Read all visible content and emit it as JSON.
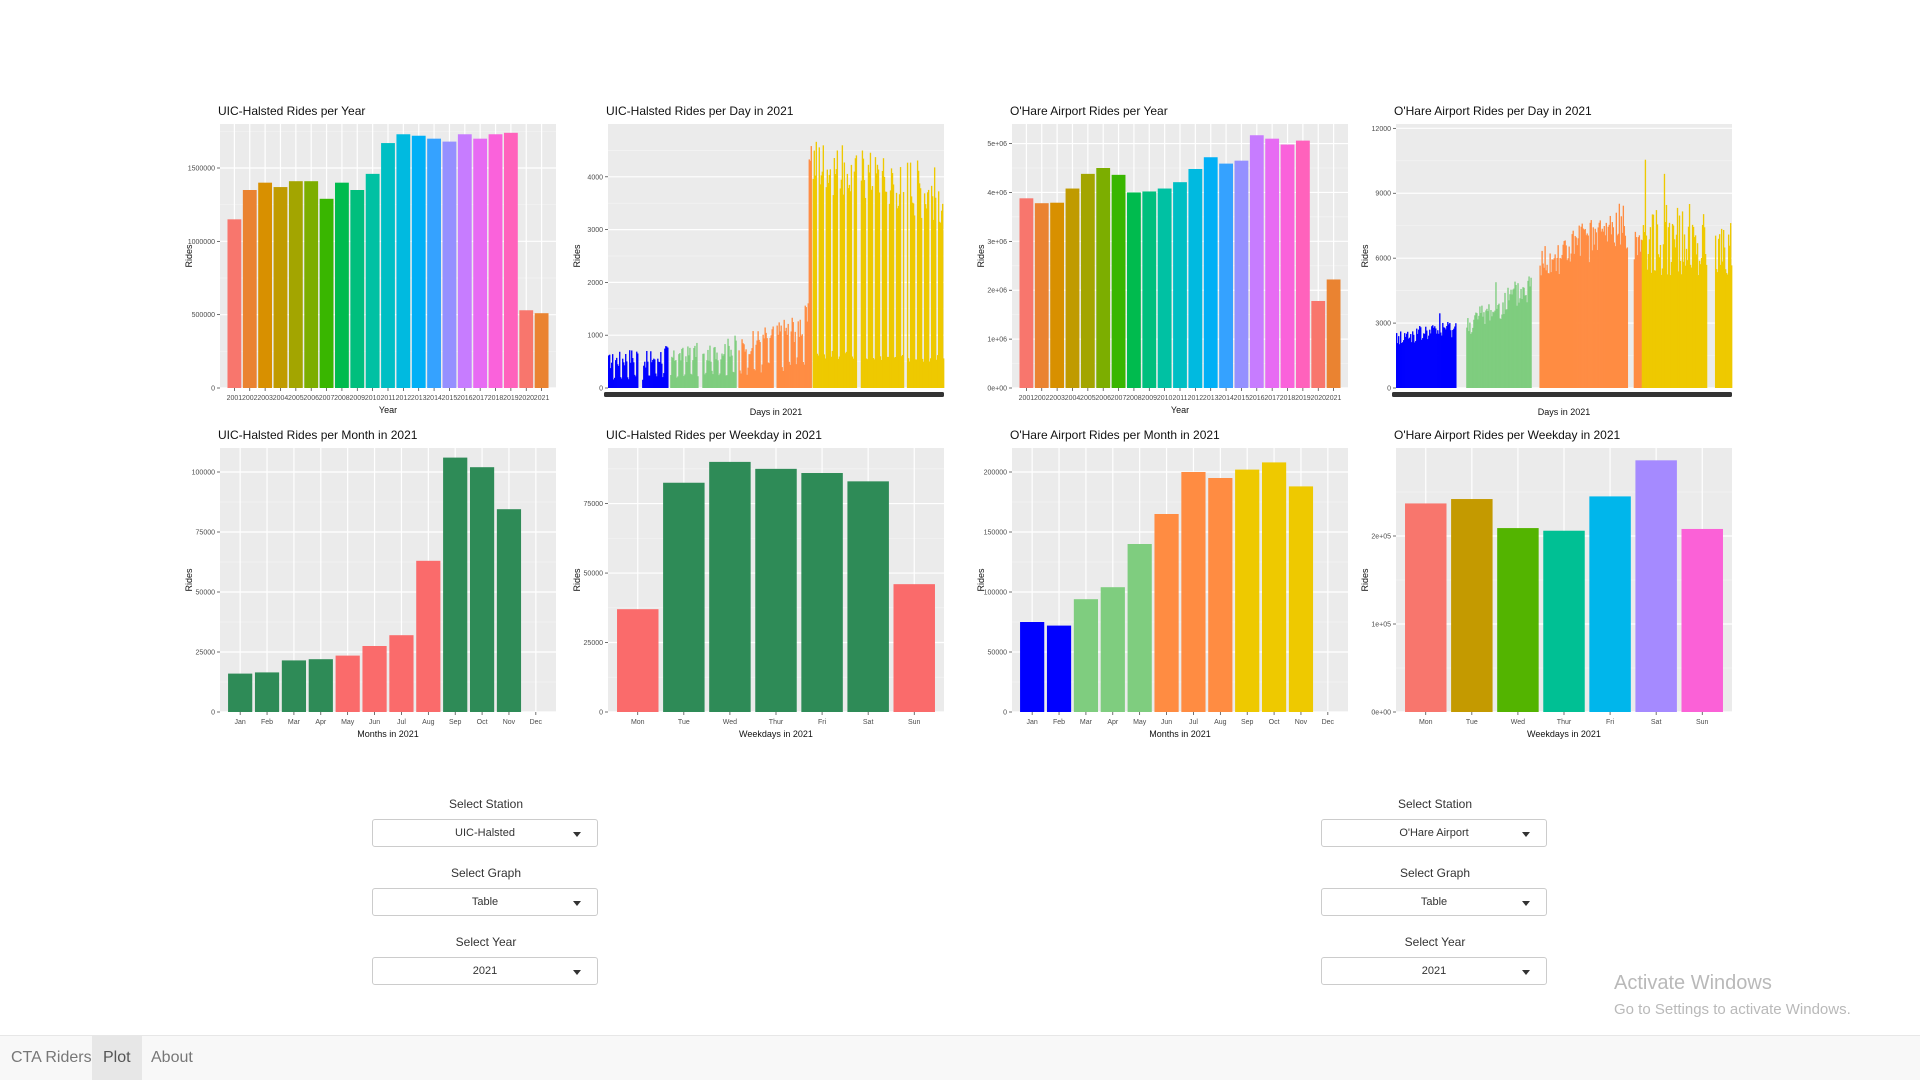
{
  "navbar": {
    "items": [
      {
        "label": "CTA Riders",
        "active": false
      },
      {
        "label": "Plot",
        "active": true
      },
      {
        "label": "About",
        "active": false
      }
    ]
  },
  "watermark": {
    "line1": "Activate Windows",
    "line2": "Go to Settings to activate Windows."
  },
  "controls": {
    "left": {
      "station_label": "Select Station",
      "station_value": "UIC-Halsted",
      "graph_label": "Select Graph",
      "graph_value": "Table",
      "year_label": "Select Year",
      "year_value": "2021"
    },
    "right": {
      "station_label": "Select Station",
      "station_value": "O'Hare Airport",
      "graph_label": "Select Graph",
      "graph_value": "Table",
      "year_label": "Select Year",
      "year_value": "2021"
    }
  },
  "colors": {
    "panel": "#ebebeb",
    "green": "#2e8b57",
    "salmon": "#fa6b6b",
    "year_palette": [
      "#f8766d",
      "#ea8331",
      "#d89000",
      "#c09b00",
      "#a3a500",
      "#7cae00",
      "#39b600",
      "#00bb4e",
      "#00bf7d",
      "#00c1a3",
      "#00bfc4",
      "#00bae0",
      "#00b0f6",
      "#35a2ff",
      "#9590ff",
      "#c77cff",
      "#e76bf3",
      "#fa62db",
      "#ff62bc"
    ],
    "weekday_palette": [
      "#f8766d",
      "#c49a00",
      "#53b400",
      "#00c094",
      "#00b6eb",
      "#a58aff",
      "#fb61d7"
    ],
    "month_ohare": [
      "#0000ff",
      "#0000ff",
      "#7fcd7f",
      "#7fcd7f",
      "#7fcd7f",
      "#ff8c42",
      "#ff8c42",
      "#ff8c42",
      "#eec900",
      "#eec900",
      "#eec900"
    ],
    "month_uic": [
      "#2e8b57",
      "#2e8b57",
      "#2e8b57",
      "#2e8b57",
      "#fa6b6b",
      "#fa6b6b",
      "#fa6b6b",
      "#fa6b6b",
      "#2e8b57",
      "#2e8b57",
      "#2e8b57"
    ],
    "weekday_uic": [
      "#fa6b6b",
      "#2e8b57",
      "#2e8b57",
      "#2e8b57",
      "#2e8b57",
      "#2e8b57",
      "#fa6b6b"
    ]
  },
  "charts": {
    "uic_year": {
      "title": "UIC-Halsted Rides per Year",
      "xlabel": "Year",
      "ylabel": "Rides",
      "categories": [
        "2001",
        "2002",
        "2003",
        "2004",
        "2005",
        "2006",
        "2007",
        "2008",
        "2009",
        "2010",
        "2011",
        "2012",
        "2013",
        "2014",
        "2015",
        "2016",
        "2017",
        "2018",
        "2019",
        "2020",
        "2021"
      ],
      "values": [
        1150000,
        1350000,
        1400000,
        1370000,
        1410000,
        1410000,
        1290000,
        1400000,
        1350000,
        1460000,
        1670000,
        1730000,
        1720000,
        1700000,
        1680000,
        1730000,
        1700000,
        1730000,
        1740000,
        530000,
        510000
      ],
      "ylim": [
        0,
        1800000
      ],
      "yticks": [
        0,
        500000,
        1000000,
        1500000
      ],
      "ytick_labels": [
        "0",
        "500000",
        "1000000",
        "1500000"
      ]
    },
    "uic_day": {
      "title": "UIC-Halsted Rides per Day in 2021",
      "xlabel": "Days in 2021",
      "ylabel": "Rides",
      "ylim": [
        0,
        5000
      ],
      "yticks": [
        0,
        1000,
        2000,
        3000,
        4000
      ],
      "ytick_labels": [
        "0",
        "1000",
        "2000",
        "3000",
        "4000"
      ]
    },
    "ohare_year": {
      "title": "O'Hare Airport Rides per Year",
      "xlabel": "Year",
      "ylabel": "Rides",
      "categories": [
        "2001",
        "2002",
        "2003",
        "2004",
        "2005",
        "2006",
        "2007",
        "2008",
        "2009",
        "2010",
        "2011",
        "2012",
        "2013",
        "2014",
        "2015",
        "2016",
        "2017",
        "2018",
        "2019",
        "2020",
        "2021"
      ],
      "values": [
        3880000,
        3780000,
        3790000,
        4080000,
        4380000,
        4500000,
        4360000,
        4000000,
        4020000,
        4080000,
        4210000,
        4480000,
        4720000,
        4590000,
        4650000,
        5170000,
        5100000,
        4980000,
        5060000,
        1780000,
        2220000
      ],
      "ylim": [
        0,
        5400000
      ],
      "yticks": [
        0,
        1000000,
        2000000,
        3000000,
        4000000,
        5000000
      ],
      "ytick_labels": [
        "0e+00",
        "1e+06",
        "2e+06",
        "3e+06",
        "4e+06",
        "5e+06"
      ]
    },
    "ohare_day": {
      "title": "O'Hare Airport Rides per Day in 2021",
      "xlabel": "Days in 2021",
      "ylabel": "Rides",
      "ylim": [
        0,
        12200
      ],
      "yticks": [
        0,
        3000,
        6000,
        9000,
        12000
      ],
      "ytick_labels": [
        "0",
        "3000",
        "6000",
        "9000",
        "12000"
      ]
    },
    "uic_month": {
      "title": "UIC-Halsted Rides per Month in 2021",
      "xlabel": "Months in 2021",
      "ylabel": "Rides",
      "categories": [
        "Jan",
        "Feb",
        "Mar",
        "Apr",
        "May",
        "Jun",
        "Jul",
        "Aug",
        "Sep",
        "Oct",
        "Nov",
        "Dec"
      ],
      "values": [
        16000,
        16500,
        21500,
        22000,
        23500,
        27500,
        32000,
        63000,
        106000,
        102000,
        84500,
        0
      ],
      "ylim": [
        0,
        110000
      ],
      "yticks": [
        0,
        25000,
        50000,
        75000,
        100000
      ],
      "ytick_labels": [
        "0",
        "25000",
        "50000",
        "75000",
        "100000"
      ]
    },
    "uic_weekday": {
      "title": "UIC-Halsted Rides per Weekday in 2021",
      "xlabel": "Weekdays in 2021",
      "ylabel": "Rides",
      "categories": [
        "Mon",
        "Tue",
        "Wed",
        "Thur",
        "Fri",
        "Sat",
        "Sun"
      ],
      "values": [
        37000,
        82500,
        90000,
        87500,
        86000,
        83000,
        46000
      ],
      "ylim": [
        0,
        95000
      ],
      "yticks": [
        0,
        25000,
        50000,
        75000
      ],
      "ytick_labels": [
        "0",
        "25000",
        "50000",
        "75000"
      ]
    },
    "ohare_month": {
      "title": "O'Hare Airport Rides per Month in 2021",
      "xlabel": "Months in 2021",
      "ylabel": "Rides",
      "categories": [
        "Jan",
        "Feb",
        "Mar",
        "Apr",
        "May",
        "Jun",
        "Jul",
        "Aug",
        "Sep",
        "Oct",
        "Nov",
        "Dec"
      ],
      "values": [
        75000,
        72000,
        94000,
        104000,
        140000,
        165000,
        200000,
        195000,
        202000,
        208000,
        188000,
        0
      ],
      "ylim": [
        0,
        220000
      ],
      "yticks": [
        0,
        50000,
        100000,
        150000,
        200000
      ],
      "ytick_labels": [
        "0",
        "50000",
        "100000",
        "150000",
        "200000"
      ]
    },
    "ohare_weekday": {
      "title": "O'Hare Airport Rides per Weekday in 2021",
      "xlabel": "Weekdays in 2021",
      "ylabel": "Rides",
      "categories": [
        "Mon",
        "Tue",
        "Wed",
        "Thur",
        "Fri",
        "Sat",
        "Sun"
      ],
      "values": [
        237000,
        242000,
        209000,
        206000,
        245000,
        286000,
        208000
      ],
      "ylim": [
        0,
        300000
      ],
      "yticks": [
        0,
        100000,
        200000
      ],
      "ytick_labels": [
        "0e+00",
        "1e+05",
        "2e+05"
      ]
    }
  }
}
